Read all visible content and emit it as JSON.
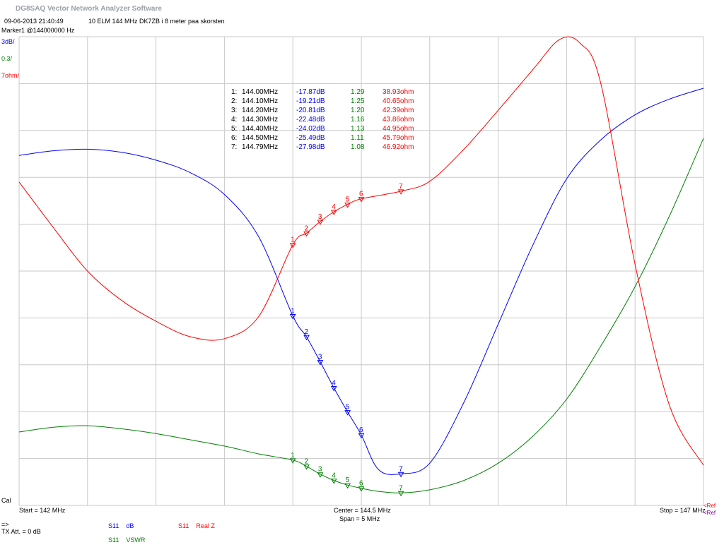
{
  "window": {
    "app_title": "DG8SAQ Vector Network Analyzer Software"
  },
  "header": {
    "datetime": "09-06-2013   21:40:49",
    "measurement_title": "10 ELM 144 MHz DK7ZB i 8 meter paa skorsten",
    "marker_info": "Marker1 @144000000 Hz"
  },
  "scales": {
    "db": "3dB/",
    "vswr": "0.3/",
    "z": "7ohm/"
  },
  "footer": {
    "cal": "Cal",
    "start": "Start = 142 MHz",
    "center": "Center = 144.5 MHz",
    "span": "Span = 5 MHz",
    "stop": "Stop = 147 MHz",
    "ref": "<Ref",
    "ref_overlap": "<Ref",
    "arrow": "=>",
    "tx_att": "TX Att.  = 0 dB"
  },
  "legend": {
    "s11_db": {
      "param": "S11",
      "unit": "dB"
    },
    "s11_vswr": {
      "param": "S11",
      "unit": "VSWR"
    },
    "s11_z": {
      "param": "S11",
      "unit": "Real Z"
    }
  },
  "colors": {
    "db": "#0000ff",
    "vswr": "#008000",
    "z": "#ff0000",
    "grid": "#c8c8c8"
  },
  "markers": [
    {
      "id": "1:",
      "freq": "144.00MHz",
      "db": "-17.87dB",
      "vswr": "1.29",
      "z": "38.93ohm"
    },
    {
      "id": "2:",
      "freq": "144.10MHz",
      "db": "-19.21dB",
      "vswr": "1.25",
      "z": "40.65ohm"
    },
    {
      "id": "3:",
      "freq": "144.20MHz",
      "db": "-20.81dB",
      "vswr": "1.20",
      "z": "42.39ohm"
    },
    {
      "id": "4:",
      "freq": "144.30MHz",
      "db": "-22.48dB",
      "vswr": "1.16",
      "z": "43.86ohm"
    },
    {
      "id": "5:",
      "freq": "144.40MHz",
      "db": "-24.02dB",
      "vswr": "1.13",
      "z": "44.95ohm"
    },
    {
      "id": "6:",
      "freq": "144.50MHz",
      "db": "-25.49dB",
      "vswr": "1.11",
      "z": "45.79ohm"
    },
    {
      "id": "7:",
      "freq": "144.79MHz",
      "db": "-27.98dB",
      "vswr": "1.08",
      "z": "46.92ohm"
    }
  ],
  "chart_data": {
    "type": "line",
    "x_unit": "MHz",
    "xlim": [
      142,
      147
    ],
    "grid": true,
    "divisions": {
      "x": 10,
      "y": 10
    },
    "series": [
      {
        "name": "S11 dB",
        "unit": "dB",
        "ylim": [
          -30,
          0
        ],
        "points": [
          [
            142,
            -7.6
          ],
          [
            142.25,
            -7.3
          ],
          [
            142.5,
            -7.2
          ],
          [
            142.75,
            -7.4
          ],
          [
            143,
            -7.9
          ],
          [
            143.25,
            -8.7
          ],
          [
            143.5,
            -10.1
          ],
          [
            143.75,
            -12.8
          ],
          [
            144,
            -17.87
          ],
          [
            144.1,
            -19.21
          ],
          [
            144.2,
            -20.81
          ],
          [
            144.3,
            -22.48
          ],
          [
            144.4,
            -24.02
          ],
          [
            144.5,
            -25.49
          ],
          [
            144.625,
            -27.7
          ],
          [
            144.79,
            -27.98
          ],
          [
            145,
            -27.3
          ],
          [
            145.25,
            -23.4
          ],
          [
            145.5,
            -18.4
          ],
          [
            145.75,
            -13.4
          ],
          [
            146,
            -9.1
          ],
          [
            146.25,
            -6.6
          ],
          [
            146.5,
            -5.0
          ],
          [
            146.75,
            -4.0
          ],
          [
            147,
            -3.3
          ]
        ]
      },
      {
        "name": "S11 VSWR",
        "unit": "VSWR",
        "ylim": [
          1,
          4
        ],
        "points": [
          [
            142,
            1.47
          ],
          [
            142.25,
            1.5
          ],
          [
            142.5,
            1.51
          ],
          [
            142.75,
            1.49
          ],
          [
            143,
            1.46
          ],
          [
            143.25,
            1.42
          ],
          [
            143.5,
            1.38
          ],
          [
            143.75,
            1.33
          ],
          [
            144,
            1.29
          ],
          [
            144.1,
            1.25
          ],
          [
            144.2,
            1.2
          ],
          [
            144.3,
            1.16
          ],
          [
            144.4,
            1.13
          ],
          [
            144.5,
            1.11
          ],
          [
            144.625,
            1.09
          ],
          [
            144.79,
            1.08
          ],
          [
            145,
            1.1
          ],
          [
            145.25,
            1.16
          ],
          [
            145.5,
            1.27
          ],
          [
            145.75,
            1.44
          ],
          [
            146,
            1.68
          ],
          [
            146.25,
            2.02
          ],
          [
            146.5,
            2.4
          ],
          [
            146.75,
            2.85
          ],
          [
            147,
            3.35
          ]
        ]
      },
      {
        "name": "S11 Real Z",
        "unit": "ohm",
        "ylim": [
          0,
          70
        ],
        "points": [
          [
            142,
            48.3
          ],
          [
            142.25,
            41.5
          ],
          [
            142.5,
            35.0
          ],
          [
            142.75,
            30.6
          ],
          [
            143,
            27.5
          ],
          [
            143.25,
            25.2
          ],
          [
            143.5,
            24.9
          ],
          [
            143.75,
            28.2
          ],
          [
            144,
            38.93
          ],
          [
            144.1,
            40.65
          ],
          [
            144.2,
            42.39
          ],
          [
            144.3,
            43.86
          ],
          [
            144.4,
            44.95
          ],
          [
            144.5,
            45.79
          ],
          [
            144.79,
            46.92
          ],
          [
            145,
            48.4
          ],
          [
            145.25,
            53.2
          ],
          [
            145.5,
            59.0
          ],
          [
            145.75,
            65.0
          ],
          [
            145.95,
            69.6
          ],
          [
            146.1,
            69.0
          ],
          [
            146.25,
            63.0
          ],
          [
            146.5,
            36.0
          ],
          [
            146.75,
            15.0
          ],
          [
            147,
            6.0
          ]
        ]
      }
    ],
    "marker_x": [
      144.0,
      144.1,
      144.2,
      144.3,
      144.4,
      144.5,
      144.79
    ]
  }
}
